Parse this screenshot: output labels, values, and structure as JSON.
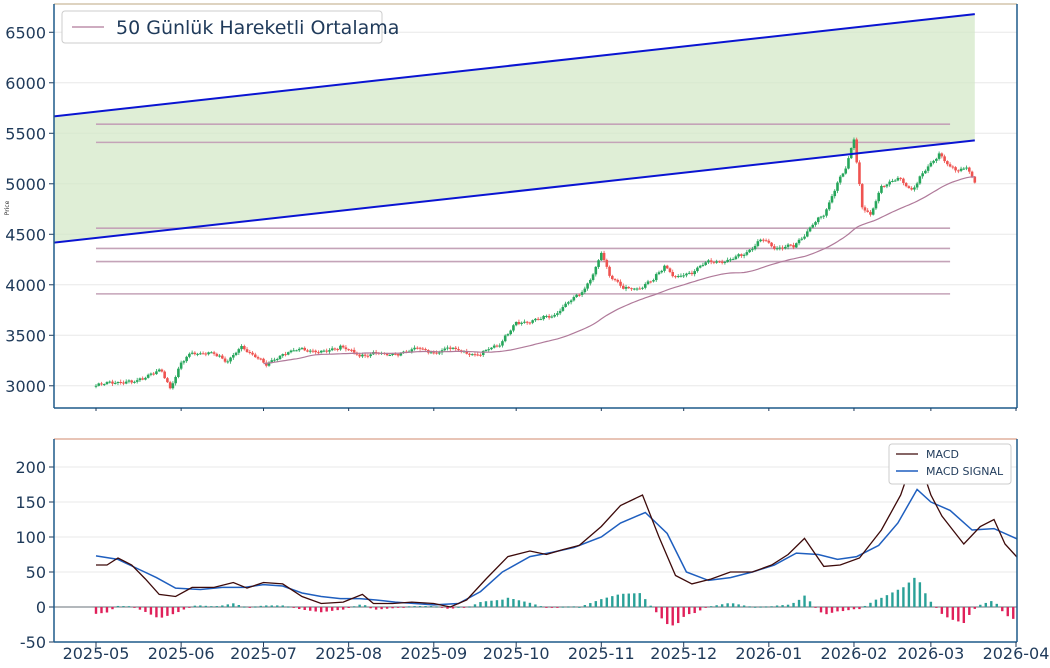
{
  "chart_data": [
    {
      "type": "candlestick",
      "panel": "price",
      "ylabel": "Price",
      "ylim": [
        2780,
        6780
      ],
      "y_ticks": [
        3000,
        3500,
        4000,
        4500,
        5000,
        5500,
        6000,
        6500
      ],
      "grid": true,
      "legend": {
        "position": "top-left",
        "entries": [
          "50 Günlük Hareketli Ortalama"
        ]
      },
      "colors": {
        "up": "#26a65b",
        "down": "#ef5350",
        "ma": "#b07a9a",
        "levels": "#c4a3b8",
        "channel": "#0a14d2",
        "channel_fill": "#d4e8c8",
        "axis_text": "#1f3a5a"
      },
      "horizontal_levels": [
        5590,
        5410,
        4560,
        4360,
        4230,
        3910
      ],
      "level_range": [
        "2025-05-01",
        "2026-03-08"
      ],
      "channel": {
        "start": "2025-01-27",
        "end": "2026-03-17",
        "upper_line": [
          5430,
          6680
        ],
        "lower_line": [
          4180,
          5430
        ]
      },
      "ma_start": "2025-07-01",
      "price_anchors": [
        [
          "2025-05-01",
          3000
        ],
        [
          "2025-05-07",
          3040
        ],
        [
          "2025-05-14",
          3030
        ],
        [
          "2025-05-21",
          3120
        ],
        [
          "2025-05-25",
          3140
        ],
        [
          "2025-05-28",
          2980
        ],
        [
          "2025-06-01",
          3220
        ],
        [
          "2025-06-05",
          3330
        ],
        [
          "2025-06-12",
          3320
        ],
        [
          "2025-06-18",
          3250
        ],
        [
          "2025-06-23",
          3380
        ],
        [
          "2025-06-28",
          3300
        ],
        [
          "2025-07-02",
          3200
        ],
        [
          "2025-07-08",
          3320
        ],
        [
          "2025-07-15",
          3360
        ],
        [
          "2025-07-22",
          3330
        ],
        [
          "2025-07-29",
          3390
        ],
        [
          "2025-08-05",
          3300
        ],
        [
          "2025-08-12",
          3320
        ],
        [
          "2025-08-20",
          3310
        ],
        [
          "2025-08-26",
          3390
        ],
        [
          "2025-09-01",
          3310
        ],
        [
          "2025-09-06",
          3390
        ],
        [
          "2025-09-12",
          3330
        ],
        [
          "2025-09-18",
          3310
        ],
        [
          "2025-09-25",
          3420
        ],
        [
          "2025-10-01",
          3620
        ],
        [
          "2025-10-08",
          3650
        ],
        [
          "2025-10-15",
          3700
        ],
        [
          "2025-10-20",
          3820
        ],
        [
          "2025-10-26",
          3960
        ],
        [
          "2025-10-30",
          4150
        ],
        [
          "2025-11-01",
          4320
        ],
        [
          "2025-11-04",
          4100
        ],
        [
          "2025-11-09",
          3960
        ],
        [
          "2025-11-15",
          3970
        ],
        [
          "2025-11-20",
          4050
        ],
        [
          "2025-11-24",
          4200
        ],
        [
          "2025-11-28",
          4060
        ],
        [
          "2025-12-04",
          4130
        ],
        [
          "2025-12-10",
          4230
        ],
        [
          "2025-12-18",
          4240
        ],
        [
          "2025-12-24",
          4330
        ],
        [
          "2025-12-30",
          4450
        ],
        [
          "2026-01-04",
          4360
        ],
        [
          "2026-01-10",
          4380
        ],
        [
          "2026-01-16",
          4560
        ],
        [
          "2026-01-21",
          4700
        ],
        [
          "2026-01-26",
          5000
        ],
        [
          "2026-01-29",
          5150
        ],
        [
          "2026-02-01",
          5450
        ],
        [
          "2026-02-04",
          4770
        ],
        [
          "2026-02-07",
          4680
        ],
        [
          "2026-02-11",
          4980
        ],
        [
          "2026-02-17",
          5050
        ],
        [
          "2026-02-22",
          4940
        ],
        [
          "2026-02-28",
          5170
        ],
        [
          "2026-03-04",
          5300
        ],
        [
          "2026-03-08",
          5160
        ],
        [
          "2026-03-11",
          5130
        ],
        [
          "2026-03-14",
          5180
        ],
        [
          "2026-03-17",
          5010
        ]
      ]
    },
    {
      "type": "line+bar",
      "panel": "macd",
      "ylim": [
        -50,
        240
      ],
      "y_ticks": [
        -50,
        0,
        50,
        100,
        150,
        200
      ],
      "grid": true,
      "legend": {
        "position": "top-right",
        "entries": [
          "MACD",
          "MACD SIGNAL"
        ]
      },
      "colors": {
        "macd": "#3d0a0a",
        "signal": "#1f5fbf",
        "hist_pos": "#2aa198",
        "hist_neg": "#e0205a"
      },
      "macd": [
        [
          "2025-05-01",
          60
        ],
        [
          "2025-05-05",
          60
        ],
        [
          "2025-05-09",
          70
        ],
        [
          "2025-05-14",
          60
        ],
        [
          "2025-05-19",
          40
        ],
        [
          "2025-05-24",
          18
        ],
        [
          "2025-05-30",
          15
        ],
        [
          "2025-06-05",
          28
        ],
        [
          "2025-06-13",
          28
        ],
        [
          "2025-06-20",
          35
        ],
        [
          "2025-06-25",
          27
        ],
        [
          "2025-07-01",
          35
        ],
        [
          "2025-07-08",
          33
        ],
        [
          "2025-07-15",
          15
        ],
        [
          "2025-07-22",
          5
        ],
        [
          "2025-07-30",
          7
        ],
        [
          "2025-08-06",
          18
        ],
        [
          "2025-08-10",
          5
        ],
        [
          "2025-08-17",
          5
        ],
        [
          "2025-08-24",
          7
        ],
        [
          "2025-09-01",
          5
        ],
        [
          "2025-09-07",
          0
        ],
        [
          "2025-09-13",
          10
        ],
        [
          "2025-09-20",
          40
        ],
        [
          "2025-09-28",
          72
        ],
        [
          "2025-10-06",
          80
        ],
        [
          "2025-10-12",
          75
        ],
        [
          "2025-10-18",
          82
        ],
        [
          "2025-10-24",
          88
        ],
        [
          "2025-11-01",
          115
        ],
        [
          "2025-11-08",
          145
        ],
        [
          "2025-11-16",
          160
        ],
        [
          "2025-11-22",
          100
        ],
        [
          "2025-11-28",
          45
        ],
        [
          "2025-12-04",
          33
        ],
        [
          "2025-12-11",
          40
        ],
        [
          "2025-12-18",
          50
        ],
        [
          "2025-12-26",
          50
        ],
        [
          "2026-01-02",
          60
        ],
        [
          "2026-01-08",
          75
        ],
        [
          "2026-01-14",
          98
        ],
        [
          "2026-01-21",
          58
        ],
        [
          "2026-01-27",
          60
        ],
        [
          "2026-02-03",
          70
        ],
        [
          "2026-02-11",
          110
        ],
        [
          "2026-02-18",
          160
        ],
        [
          "2026-02-24",
          228
        ],
        [
          "2026-02-26",
          195
        ],
        [
          "2026-03-01",
          160
        ],
        [
          "2026-03-05",
          130
        ],
        [
          "2026-03-09",
          110
        ],
        [
          "2026-03-13",
          90
        ],
        [
          "2026-03-19",
          115
        ],
        [
          "2026-03-24",
          125
        ],
        [
          "2026-03-28",
          90
        ],
        [
          "2026-04-04",
          60
        ],
        [
          "2026-04-09",
          45
        ]
      ],
      "signal": [
        [
          "2025-05-01",
          73
        ],
        [
          "2025-05-09",
          68
        ],
        [
          "2025-05-16",
          55
        ],
        [
          "2025-05-23",
          42
        ],
        [
          "2025-05-30",
          27
        ],
        [
          "2025-06-08",
          25
        ],
        [
          "2025-06-16",
          28
        ],
        [
          "2025-06-24",
          28
        ],
        [
          "2025-07-01",
          32
        ],
        [
          "2025-07-08",
          30
        ],
        [
          "2025-07-15",
          20
        ],
        [
          "2025-07-22",
          15
        ],
        [
          "2025-07-29",
          12
        ],
        [
          "2025-08-05",
          12
        ],
        [
          "2025-08-11",
          10
        ],
        [
          "2025-08-18",
          7
        ],
        [
          "2025-08-25",
          5
        ],
        [
          "2025-09-01",
          3
        ],
        [
          "2025-09-10",
          5
        ],
        [
          "2025-09-18",
          22
        ],
        [
          "2025-09-26",
          50
        ],
        [
          "2025-10-06",
          72
        ],
        [
          "2025-10-14",
          78
        ],
        [
          "2025-10-22",
          85
        ],
        [
          "2025-11-01",
          100
        ],
        [
          "2025-11-08",
          120
        ],
        [
          "2025-11-17",
          135
        ],
        [
          "2025-11-25",
          105
        ],
        [
          "2025-12-02",
          50
        ],
        [
          "2025-12-10",
          38
        ],
        [
          "2025-12-18",
          42
        ],
        [
          "2025-12-26",
          50
        ],
        [
          "2026-01-03",
          60
        ],
        [
          "2026-01-11",
          77
        ],
        [
          "2026-01-19",
          75
        ],
        [
          "2026-01-26",
          68
        ],
        [
          "2026-02-02",
          72
        ],
        [
          "2026-02-10",
          88
        ],
        [
          "2026-02-17",
          120
        ],
        [
          "2026-02-24",
          168
        ],
        [
          "2026-03-01",
          150
        ],
        [
          "2026-03-08",
          138
        ],
        [
          "2026-03-16",
          110
        ],
        [
          "2026-03-24",
          112
        ],
        [
          "2026-04-01",
          98
        ],
        [
          "2026-04-09",
          75
        ]
      ]
    }
  ],
  "x_ticks": [
    "2025-05",
    "2025-06",
    "2025-07",
    "2025-08",
    "2025-09",
    "2025-10",
    "2025-11",
    "2025-12",
    "2026-01",
    "2026-02",
    "2026-03",
    "2026-04"
  ]
}
